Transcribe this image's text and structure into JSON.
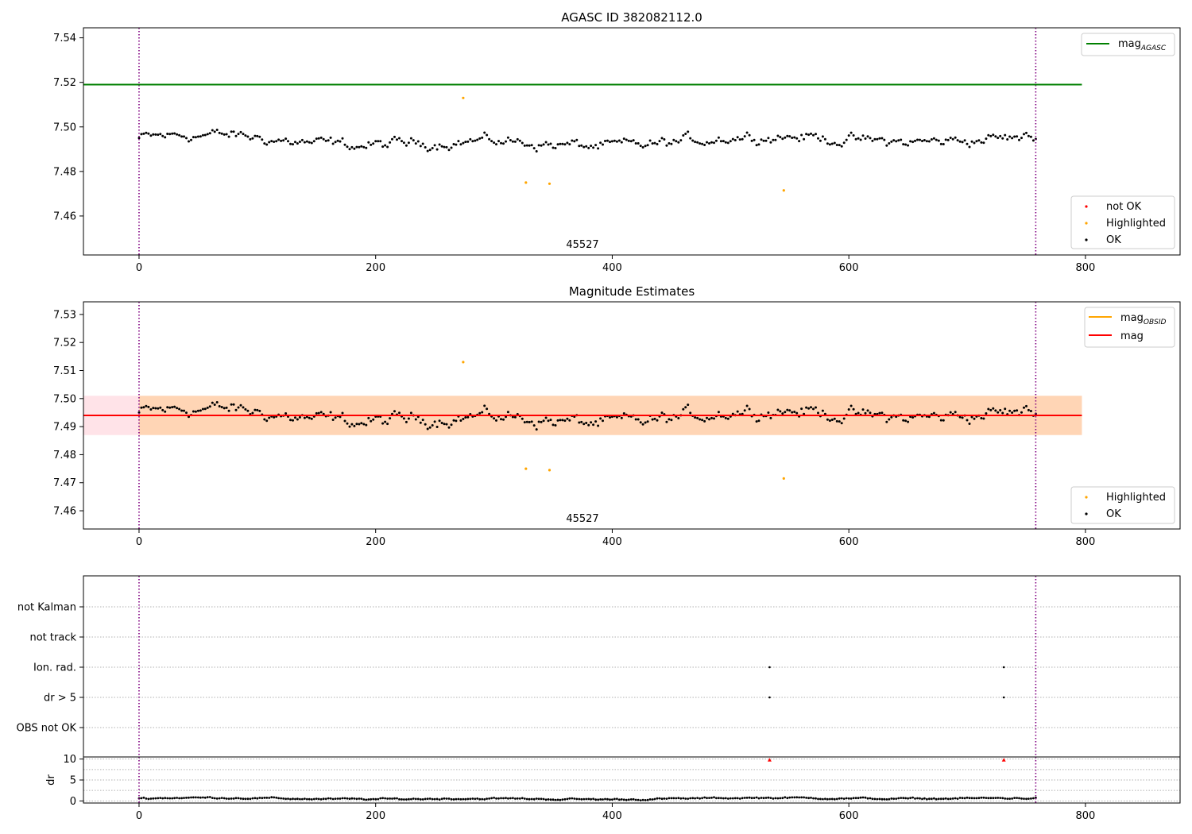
{
  "chart_data": [
    {
      "type": "scatter",
      "title": "AGASC ID 382082112.0",
      "xlabel": "",
      "ylabel": "",
      "xlim": [
        -47,
        880
      ],
      "ylim": [
        7.4425,
        7.5445
      ],
      "xticks": [
        0,
        200,
        400,
        600,
        800
      ],
      "yticks": [
        7.46,
        7.48,
        7.5,
        7.52,
        7.54
      ],
      "ytick_labels": [
        "7.46",
        "7.48",
        "7.50",
        "7.52",
        "7.54"
      ],
      "annotation": "45527",
      "vlines": [
        0,
        758
      ],
      "hlines": [
        {
          "name": "mag_AGASC",
          "y": 7.519,
          "x": [
            -47,
            797
          ],
          "color": "#008000"
        }
      ],
      "series": [
        {
          "name": "OK",
          "color": "#000000",
          "x_range": [
            0,
            758
          ],
          "n": 380,
          "mean": 7.4935,
          "noise": 0.004
        },
        {
          "name": "Highlighted",
          "color": "#ffa500",
          "points": [
            [
              274,
              7.513
            ],
            [
              327,
              7.475
            ],
            [
              347,
              7.4745
            ],
            [
              545,
              7.4715
            ]
          ]
        },
        {
          "name": "not OK",
          "color": "#ff0000",
          "points": []
        }
      ],
      "legend": [
        {
          "label": "mag",
          "sub": "AGASC",
          "color": "#008000",
          "placement": "upper-right"
        },
        {
          "label": "not OK",
          "color": "#ff0000",
          "placement": "lower-right"
        },
        {
          "label": "Highlighted",
          "color": "#ffa500",
          "placement": "lower-right"
        },
        {
          "label": "OK",
          "color": "#000000",
          "placement": "lower-right"
        }
      ]
    },
    {
      "type": "scatter",
      "title": "Magnitude Estimates",
      "xlabel": "",
      "ylabel": "",
      "xlim": [
        -47,
        880
      ],
      "ylim": [
        7.4535,
        7.5345
      ],
      "xticks": [
        0,
        200,
        400,
        600,
        800
      ],
      "yticks": [
        7.46,
        7.47,
        7.48,
        7.49,
        7.5,
        7.51,
        7.52,
        7.53
      ],
      "ytick_labels": [
        "7.46",
        "7.47",
        "7.48",
        "7.49",
        "7.50",
        "7.51",
        "7.52",
        "7.53"
      ],
      "annotation": "45527",
      "vlines": [
        0,
        758
      ],
      "bands": [
        {
          "y": [
            7.487,
            7.501
          ],
          "x": [
            -47,
            797
          ],
          "color": "#ffc0cb",
          "opacity": 0.45
        },
        {
          "y": [
            7.487,
            7.501
          ],
          "x": [
            0,
            797
          ],
          "color": "#ffa500",
          "opacity": 0.22
        }
      ],
      "hlines": [
        {
          "name": "mag_OBSID",
          "y": 7.494,
          "x": [
            0,
            797
          ],
          "color": "#ffa500"
        },
        {
          "name": "mag",
          "y": 7.494,
          "x": [
            -47,
            797
          ],
          "color": "#ff0000"
        }
      ],
      "series": [
        {
          "name": "OK",
          "color": "#000000",
          "x_range": [
            0,
            758
          ],
          "n": 380,
          "mean": 7.4935,
          "noise": 0.004
        },
        {
          "name": "Highlighted",
          "color": "#ffa500",
          "points": [
            [
              274,
              7.513
            ],
            [
              327,
              7.475
            ],
            [
              347,
              7.4745
            ],
            [
              545,
              7.4715
            ]
          ]
        }
      ],
      "legend": [
        {
          "label": "mag",
          "sub": "OBSID",
          "color": "#ffa500",
          "placement": "upper-right"
        },
        {
          "label": "mag",
          "color": "#ff0000",
          "placement": "upper-right"
        },
        {
          "label": "Highlighted",
          "color": "#ffa500",
          "placement": "lower-right"
        },
        {
          "label": "OK",
          "color": "#000000",
          "placement": "lower-right"
        }
      ]
    },
    {
      "type": "scatter",
      "title": "",
      "xlim": [
        -47,
        880
      ],
      "categories": [
        "OBS not OK",
        "dr > 5",
        "Ion. rad.",
        "not track",
        "not Kalman"
      ],
      "flag_points": [
        {
          "category": "Ion. rad.",
          "x": [
            533,
            731
          ]
        },
        {
          "category": "dr > 5",
          "x": [
            533,
            731
          ]
        }
      ],
      "vlines": [
        0,
        758
      ]
    },
    {
      "type": "scatter",
      "title": "",
      "ylabel": "dr",
      "xlim": [
        -47,
        880
      ],
      "ylim": [
        -0.5,
        10.5
      ],
      "xticks": [
        0,
        200,
        400,
        600,
        800
      ],
      "yticks": [
        0,
        5,
        10
      ],
      "ytick_labels": [
        "0",
        "5",
        "10"
      ],
      "vlines": [
        0,
        758
      ],
      "series": [
        {
          "name": "dr",
          "color": "#000000",
          "x_range": [
            0,
            758
          ],
          "n": 380,
          "mean": 0.55,
          "noise": 0.3
        },
        {
          "name": "dr (capped)",
          "color": "#ff0000",
          "points": [
            [
              533,
              9.8
            ],
            [
              731,
              9.8
            ]
          ]
        }
      ]
    }
  ],
  "legend_panel1": {
    "mag": "mag",
    "sub": "AGASC",
    "not_ok": "not OK",
    "highlighted": "Highlighted",
    "ok": "OK"
  },
  "legend_panel2": {
    "mag_obsid": "mag",
    "sub": "OBSID",
    "mag": "mag",
    "highlighted": "Highlighted",
    "ok": "OK"
  }
}
